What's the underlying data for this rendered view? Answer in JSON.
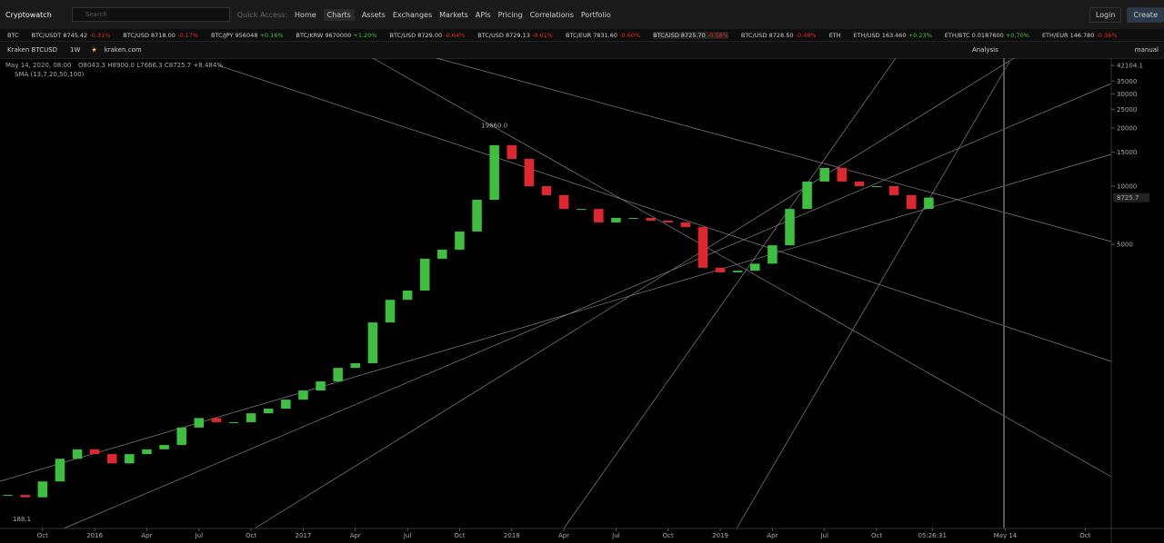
{
  "nav": {
    "brand": "Cryptowatch",
    "search_placeholder": "Search",
    "quick_access": "Quick Access:",
    "links": [
      "Home",
      "Charts",
      "Assets",
      "Exchanges",
      "Markets",
      "APIs",
      "Pricing",
      "Correlations",
      "Portfolio"
    ],
    "login": "Login",
    "create": "Create"
  },
  "ticker": {
    "group": "BTC",
    "items": [
      {
        "pair": "BTC/USDT",
        "price": "8745.42",
        "change": "-0.31%"
      },
      {
        "pair": "BTC/USD",
        "price": "8718.00",
        "change": "-0.17%"
      },
      {
        "pair": "BTC/JPY",
        "price": "956048",
        "change": "+0.16%"
      },
      {
        "pair": "BTC/KRW",
        "price": "9670000",
        "change": "+1.20%"
      },
      {
        "pair": "BTC/USD",
        "price": "8729.00",
        "change": "-0.64%"
      },
      {
        "pair": "BTC/USD",
        "price": "8729.13",
        "change": "-0.61%"
      },
      {
        "pair": "BTC/EUR",
        "price": "7831.60",
        "change": "-0.60%"
      },
      {
        "pair": "BTC/USD",
        "price": "8725.70",
        "change": "-0.58%"
      },
      {
        "pair": "BTC/USD",
        "price": "8728.50",
        "change": "-0.48%"
      },
      {
        "pair": "ETH",
        "price": "",
        "change": ""
      },
      {
        "pair": "ETH/USD",
        "price": "163.460",
        "change": "+0.23%"
      },
      {
        "pair": "ETH/BTC",
        "price": "0.0187600",
        "change": "+0.70%"
      },
      {
        "pair": "ETH/EUR",
        "price": "146.780",
        "change": "-0.36%"
      }
    ]
  },
  "toolbar": {
    "market": "Kraken BTCUSD",
    "interval": "1W",
    "exchange": "kraken.com",
    "analysis": "Analysis",
    "scale_mode": "manual"
  },
  "chart": {
    "type": "candlestick",
    "date": "May 14, 2020, 08:00",
    "ohlc": "O8043.3  H8900.0  L7666.3  C8725.7  +8.484%",
    "indicator": "SMA (13,7,20,50,100)",
    "log_scale": true,
    "ylim": [
      169,
      46000
    ],
    "xlim": [
      6.55,
      70.5
    ],
    "yticks": [
      42104.1,
      35000,
      30000,
      25000,
      20000,
      15000,
      10000,
      5000
    ],
    "last_price": 8725.7,
    "high_label": {
      "value": 19660,
      "label": "19660.0"
    },
    "low_label": 188.1,
    "xticks": [
      {
        "value": 9,
        "label": "Oct"
      },
      {
        "value": 12,
        "label": "2016"
      },
      {
        "value": 15,
        "label": "Apr"
      },
      {
        "value": 18,
        "label": "Jul"
      },
      {
        "value": 21,
        "label": "Oct"
      },
      {
        "value": 24,
        "label": "2017"
      },
      {
        "value": 27,
        "label": "Apr"
      },
      {
        "value": 30,
        "label": "Jul"
      },
      {
        "value": 33,
        "label": "Oct"
      },
      {
        "value": 36,
        "label": "2018"
      },
      {
        "value": 39,
        "label": "Apr"
      },
      {
        "value": 42,
        "label": "Jul"
      },
      {
        "value": 45,
        "label": "Oct"
      },
      {
        "value": 48,
        "label": "2019"
      },
      {
        "value": 51,
        "label": "Apr"
      },
      {
        "value": 54,
        "label": "Jul"
      },
      {
        "value": 57,
        "label": "Oct"
      },
      {
        "value": 60.2,
        "label": "05:26:31"
      },
      {
        "value": 64.4,
        "label": "May 14"
      },
      {
        "value": 69,
        "label": "Oct"
      }
    ],
    "x": [
      7,
      8,
      9,
      10,
      11,
      12,
      13,
      14,
      15,
      16,
      17,
      18,
      19,
      20,
      21,
      22,
      23,
      24,
      25,
      26,
      27,
      28,
      29,
      30,
      31,
      32,
      33,
      34,
      35,
      36,
      37,
      38,
      39,
      40,
      41,
      42,
      43,
      44,
      45,
      46,
      47,
      48,
      49,
      50,
      51,
      52,
      53,
      54,
      55,
      56,
      57,
      58,
      59,
      60
    ],
    "closes": [
      252,
      245,
      296,
      388,
      434,
      410,
      367,
      410,
      434,
      457,
      563,
      630,
      600,
      600,
      667,
      705,
      785,
      875,
      975,
      1146,
      1211,
      1970,
      2580,
      2880,
      4210,
      4690,
      5820,
      8500,
      16300,
      13840,
      10000,
      8980,
      7620,
      7620,
      6490,
      6850,
      6850,
      6630,
      6490,
      6140,
      3780,
      3580,
      3650,
      3970,
      4940,
      7620,
      10560,
      12420,
      10560,
      10000,
      10000,
      8980,
      7620,
      8725.7
    ],
    "up_color": "#3fbf3f",
    "down_color": "#e0262f"
  }
}
